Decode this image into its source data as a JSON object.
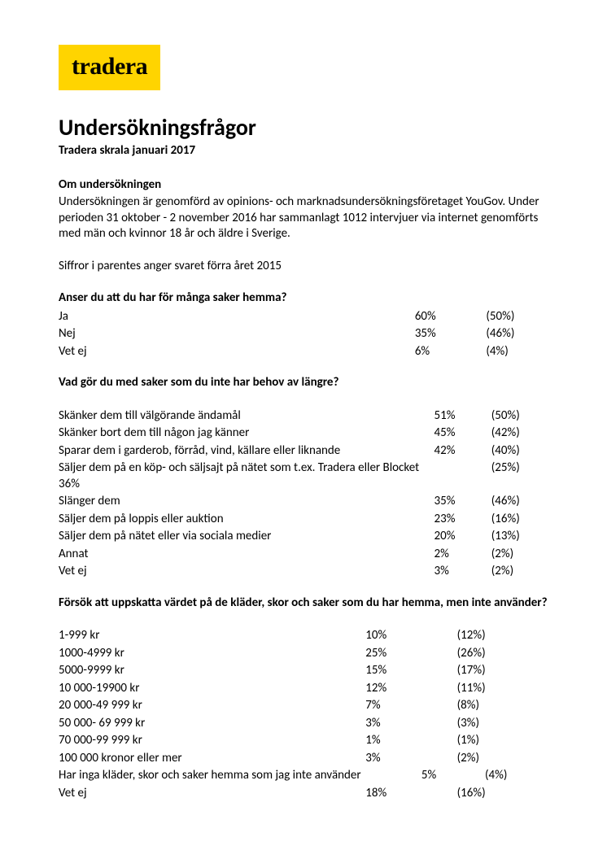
{
  "logo": {
    "text": "tradera",
    "bg": "#ffd400",
    "font": "Georgia"
  },
  "title": "Undersökningsfrågor",
  "subtitle": "Tradera skrala januari 2017",
  "about": {
    "heading": "Om undersökningen",
    "p1": "Undersökningen är genomförd av opinions- och marknadsundersökningsföretaget YouGov. Under perioden 31 oktober - 2 november 2016 har sammanlagt 1012 intervjuer via internet genomförts med män och kvinnor 18 år och äldre i Sverige.",
    "p2": "Siffror i parentes anger svaret förra året 2015"
  },
  "q1": {
    "heading": "Anser du att du har för många saker hemma?",
    "rows": [
      {
        "label": "Ja",
        "v": "60%",
        "prev": "(50%)"
      },
      {
        "label": "Nej",
        "v": "35%",
        "prev": "(46%)"
      },
      {
        "label": "Vet ej",
        "v": "6%",
        "prev": "(4%)"
      }
    ]
  },
  "q2": {
    "heading": "Vad gör du med saker som du inte har behov av längre?",
    "rows": [
      {
        "label": "Skänker dem till välgörande ändamål",
        "v": "51%",
        "prev": "(50%)"
      },
      {
        "label": "Skänker bort dem till någon jag känner",
        "v": "45%",
        "prev": "(42%)"
      },
      {
        "label": "Sparar dem i garderob, förråd, vind, källare eller liknande",
        "v": "42%",
        "prev": "(40%)"
      },
      {
        "label": "Säljer dem på en köp- och säljsajt på nätet som t.ex. Tradera eller Blocket 36%",
        "v": "",
        "prev": "(25%)"
      },
      {
        "label": "Slänger dem",
        "v": "35%",
        "prev": "(46%)"
      },
      {
        "label": "Säljer dem på loppis eller auktion",
        "v": "23%",
        "prev": "(16%)"
      },
      {
        "label": "Säljer dem på nätet eller via sociala medier",
        "v": "20%",
        "prev": "(13%)"
      },
      {
        "label": "Annat",
        "v": "2%",
        "prev": "(2%)"
      },
      {
        "label": "Vet ej",
        "v": "3%",
        "prev": "(2%)"
      }
    ]
  },
  "q3": {
    "heading": "Försök att uppskatta värdet på de kläder, skor och saker som du har hemma, men inte använder?",
    "rows": [
      {
        "label": "1-999 kr",
        "v": "10%",
        "prev": "(12%)"
      },
      {
        "label": "1000-4999 kr",
        "v": "25%",
        "prev": "(26%)"
      },
      {
        "label": "5000-9999 kr",
        "v": "15%",
        "prev": "(17%)"
      },
      {
        "label": "10 000-19900 kr",
        "v": "12%",
        "prev": "(11%)"
      },
      {
        "label": "20 000-49 999 kr",
        "v": "7%",
        "prev": "(8%)"
      },
      {
        "label": "50 000- 69 999 kr",
        "v": "3%",
        "prev": "(3%)"
      },
      {
        "label": "70 000-99 999 kr",
        "v": "1%",
        "prev": "(1%)"
      },
      {
        "label": "100 000 kronor eller mer",
        "v": "3%",
        "prev": "(2%)"
      }
    ],
    "longRow": {
      "label": "Har inga kläder, skor och saker hemma som jag inte använder",
      "v": "5%",
      "prev": "(4%)"
    },
    "lastRow": {
      "label": "Vet ej",
      "v": "18%",
      "prev": "(16%)"
    }
  }
}
